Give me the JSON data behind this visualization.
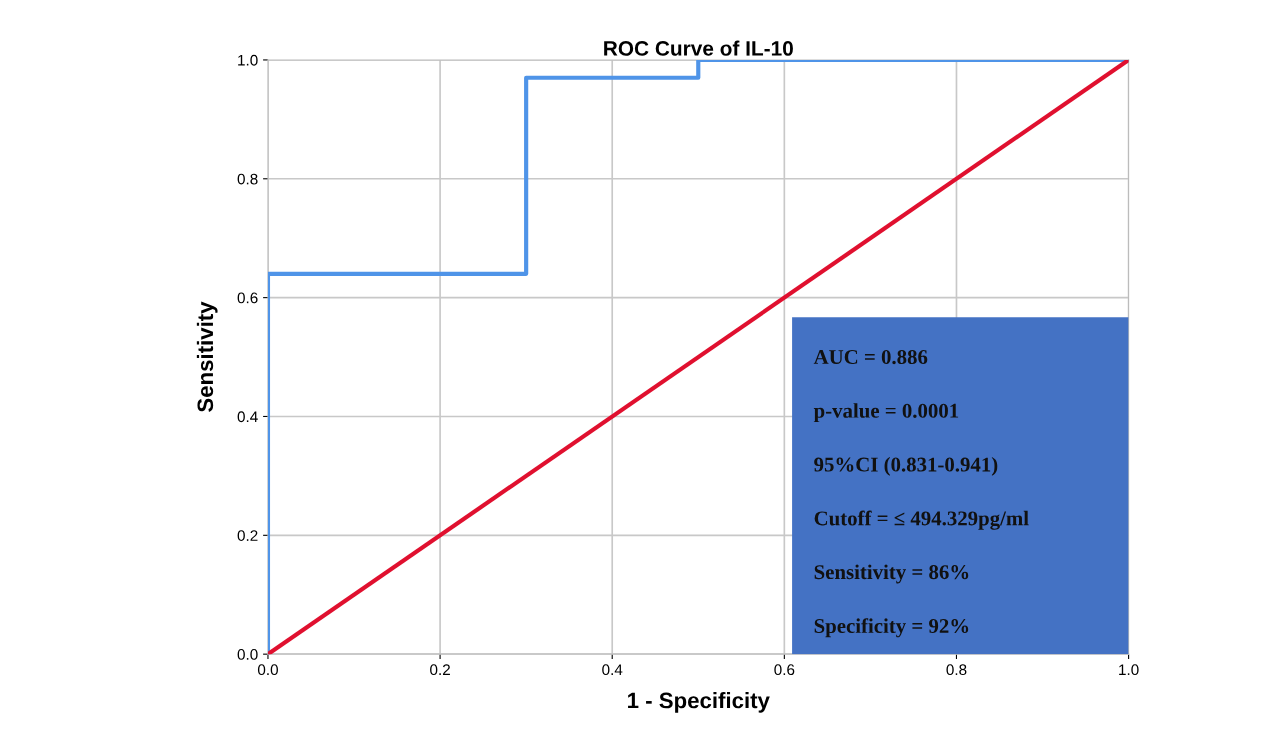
{
  "chart_data": {
    "type": "line",
    "title": "ROC Curve of IL-10",
    "xlabel": "1 - Specificity",
    "ylabel": "Sensitivity",
    "series": [
      {
        "color": "#4f94e8",
        "x": [
          0,
          0,
          0.3,
          0.3,
          0.5,
          0.5,
          1
        ],
        "values": [
          0,
          0.64,
          0.64,
          0.97,
          0.97,
          1,
          1
        ]
      },
      {
        "color": "#e0102f",
        "x": [
          0,
          1
        ],
        "values": [
          0,
          1
        ]
      }
    ],
    "xlim": [
      0,
      1
    ],
    "ylim": [
      0,
      1
    ],
    "xticks": [
      {
        "value": 0,
        "label": "0.0"
      },
      {
        "value": 0.2,
        "label": "0.2"
      },
      {
        "value": 0.4,
        "label": "0.4"
      },
      {
        "value": 0.6,
        "label": "0.6"
      },
      {
        "value": 0.8,
        "label": "0.8"
      },
      {
        "value": 1,
        "label": "1.0"
      }
    ],
    "yticks": [
      {
        "value": 0,
        "label": "0.0"
      },
      {
        "value": 0.2,
        "label": "0.2"
      },
      {
        "value": 0.4,
        "label": "0.4"
      },
      {
        "value": 0.6,
        "label": "0.6"
      },
      {
        "value": 0.8,
        "label": "0.8"
      },
      {
        "value": 1,
        "label": "1.0"
      }
    ],
    "grid": true,
    "marker": "none",
    "line_style": "solid",
    "annotations": [
      "AUC = 0.886",
      "p-value = 0.0001",
      "95%CI (0.831-0.941)",
      "Cutoff = ≤ 494.329pg/ml",
      "Sensitivity = 86%",
      "Specificity = 92%"
    ]
  }
}
